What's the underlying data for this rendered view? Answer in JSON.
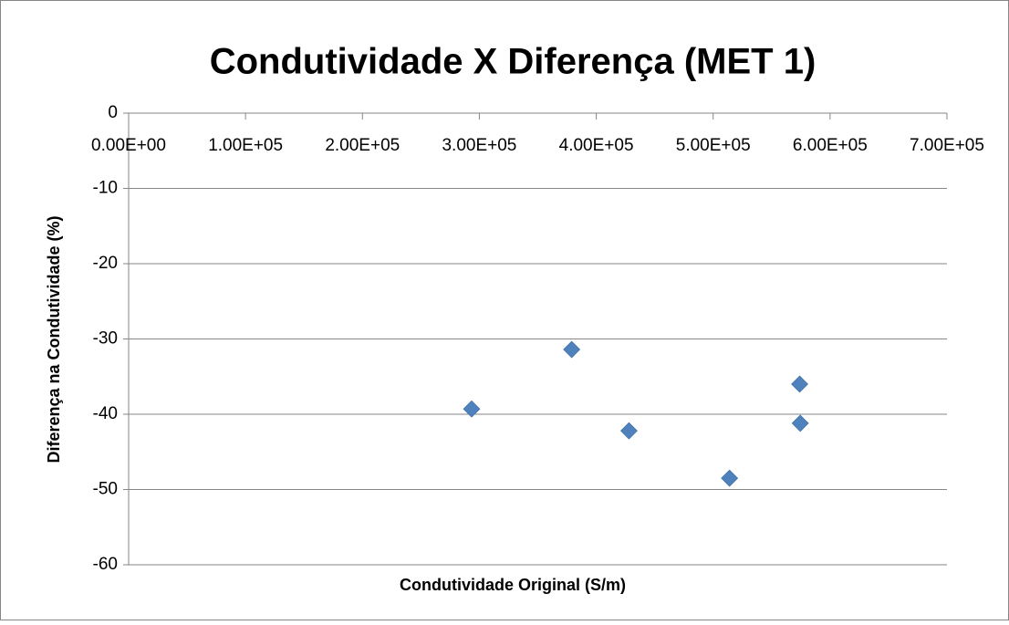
{
  "chart_data": {
    "type": "scatter",
    "title": "Condutividade X Diferença (MET 1)",
    "x_label": "Condutividade Original (S/m)",
    "y_label": "Diferença na Condutividade (%)",
    "series": [
      {
        "color": "#4f81bd",
        "x": [
          293400,
          379000,
          428000,
          514000,
          574000,
          574500
        ],
        "values": [
          -39.3,
          -31.4,
          -42.2,
          -48.5,
          -36.0,
          -41.2
        ]
      }
    ],
    "xlim": [
      0,
      700000
    ],
    "xticks": [
      {
        "value": 0,
        "label": "0.00E+00"
      },
      {
        "value": 100000,
        "label": "1.00E+05"
      },
      {
        "value": 200000,
        "label": "2.00E+05"
      },
      {
        "value": 300000,
        "label": "3.00E+05"
      },
      {
        "value": 400000,
        "label": "4.00E+05"
      },
      {
        "value": 500000,
        "label": "5.00E+05"
      },
      {
        "value": 600000,
        "label": "6.00E+05"
      },
      {
        "value": 700000,
        "label": "7.00E+05"
      }
    ],
    "ylim": [
      -60,
      0
    ],
    "yticks": [
      0,
      -10,
      -20,
      -30,
      -40,
      -50,
      -60
    ],
    "grid": true
  }
}
